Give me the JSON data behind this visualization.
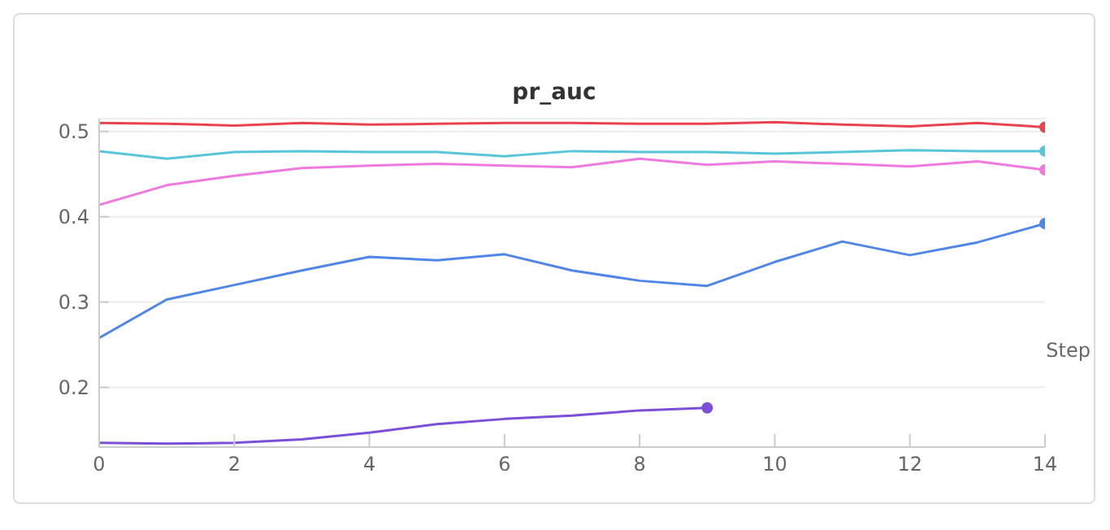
{
  "chart_data": {
    "type": "line",
    "title": "pr_auc",
    "xlabel": "Step",
    "x": [
      0,
      1,
      2,
      3,
      4,
      5,
      6,
      7,
      8,
      9,
      10,
      11,
      12,
      13,
      14
    ],
    "xlim": [
      0,
      14
    ],
    "xticks": [
      0,
      2,
      4,
      6,
      8,
      10,
      12,
      14
    ],
    "ylim": [
      0.13,
      0.515
    ],
    "yticks": [
      0.2,
      0.3,
      0.4,
      0.5
    ],
    "grid": "y",
    "line_style": "solid",
    "series": [
      {
        "color": "#e8434f",
        "values": [
          0.51,
          0.509,
          0.507,
          0.51,
          0.508,
          0.509,
          0.51,
          0.51,
          0.509,
          0.509,
          0.511,
          0.508,
          0.506,
          0.51,
          0.505
        ]
      },
      {
        "color": "#58c6d8",
        "values": [
          0.477,
          0.468,
          0.476,
          0.477,
          0.476,
          0.476,
          0.471,
          0.477,
          0.476,
          0.476,
          0.474,
          0.476,
          0.478,
          0.477,
          0.477
        ]
      },
      {
        "color": "#ee7ae0",
        "values": [
          0.414,
          0.437,
          0.448,
          0.457,
          0.46,
          0.462,
          0.46,
          0.458,
          0.468,
          0.461,
          0.465,
          0.462,
          0.459,
          0.465,
          0.455
        ]
      },
      {
        "color": "#4f86e8",
        "values": [
          0.258,
          0.303,
          0.32,
          0.337,
          0.353,
          0.349,
          0.356,
          0.337,
          0.325,
          0.319,
          0.347,
          0.371,
          0.355,
          0.37,
          0.392
        ]
      },
      {
        "color": "#7b4fd8",
        "values": [
          0.135,
          0.134,
          0.135,
          0.139,
          0.147,
          0.157,
          0.163,
          0.167,
          0.173,
          0.176,
          null,
          null,
          null,
          null,
          null
        ]
      }
    ]
  }
}
